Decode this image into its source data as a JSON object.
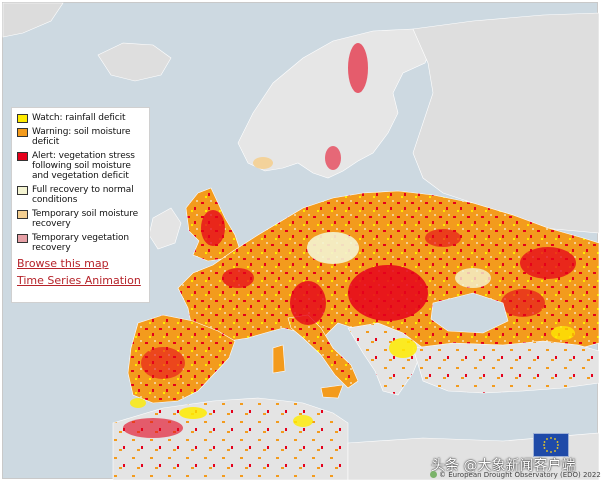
{
  "colors": {
    "sea": "#cdd9e1",
    "land": "#e8e8e8",
    "non_eu_land": "#d8d8d8",
    "border": "#ffffff",
    "watch": "#ffeb00",
    "warning": "#f39b1d",
    "alert": "#e5001b",
    "full_recovery": "#f4f4d2",
    "temporary_soil_recovery": "#f4cf91",
    "temporary_vegetation_recovery": "#e6a0a6"
  },
  "legend": {
    "items": [
      {
        "key": "watch",
        "label": "Watch: rainfall deficit",
        "color": "#ffeb00"
      },
      {
        "key": "warning",
        "label": "Warning: soil moisture deficit",
        "color": "#f39b1d"
      },
      {
        "key": "alert",
        "label": "Alert: vegetation stress following soil moisture and vegetation deficit",
        "color": "#e5001b"
      },
      {
        "key": "full_recovery",
        "label": "Full recovery to normal conditions",
        "color": "#f4f4d2"
      },
      {
        "key": "temporary_soil_recovery",
        "label": "Temporary soil moisture recovery",
        "color": "#f4cf91"
      },
      {
        "key": "temporary_vegetation_recovery",
        "label": "Temporary vegetation recovery",
        "color": "#e6a0a6"
      }
    ],
    "links": {
      "browse": "Browse this map",
      "animation": "Time Series Animation"
    }
  },
  "footer": {
    "watermark": "头条 @大象新闻客户端",
    "credit": "© European Drought Observatory (EDO) 2022",
    "flag_icon": "eu-flag-icon"
  }
}
